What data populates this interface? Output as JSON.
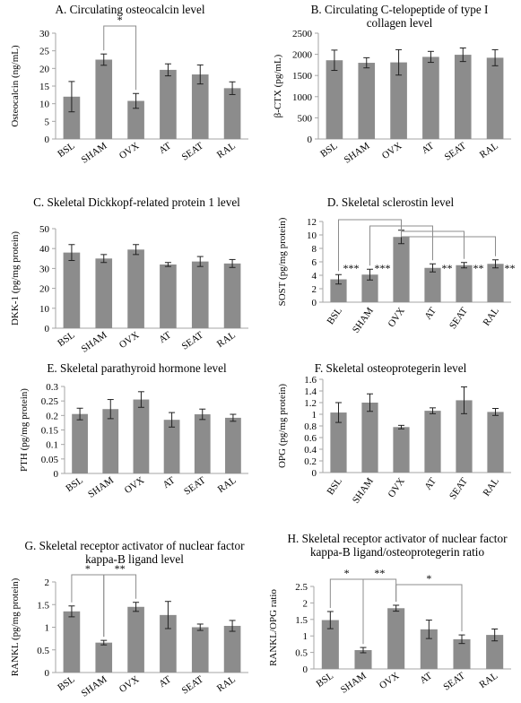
{
  "style": {
    "bar_color": "#8c8c8c",
    "axis_color": "#a6a6a6",
    "error_color": "#222222",
    "bracket_color": "#8c8c8c"
  },
  "chart_data": [
    {
      "type": "bar",
      "title": "A. Circulating osteocalcin level",
      "ylabel": "Osteocalcin (ng/mL)",
      "categories": [
        "BSL",
        "SHAM",
        "OVX",
        "AT",
        "SEAT",
        "RAL"
      ],
      "values": [
        12.0,
        22.5,
        10.8,
        19.6,
        18.3,
        14.4
      ],
      "errors": [
        4.3,
        1.6,
        2.1,
        1.7,
        2.7,
        1.8
      ],
      "ylim": [
        0,
        30
      ],
      "ytick_step": 5,
      "yticks": [
        "0",
        "5",
        "10",
        "15",
        "20",
        "25",
        "30"
      ],
      "significance": [
        {
          "from": "SHAM",
          "to": "OVX",
          "label": "*"
        }
      ]
    },
    {
      "type": "bar",
      "title": "B. Circulating C-telopeptide of type I collagen level",
      "ylabel": "β-CTX (pg/mL)",
      "categories": [
        "BSL",
        "SHAM",
        "OVX",
        "AT",
        "SEAT",
        "RAL"
      ],
      "values": [
        1860,
        1800,
        1810,
        1940,
        1990,
        1920
      ],
      "errors": [
        240,
        120,
        300,
        130,
        160,
        190
      ],
      "ylim": [
        0,
        2500
      ],
      "ytick_step": 500,
      "yticks": [
        "0",
        "500",
        "1000",
        "1500",
        "2000",
        "2500"
      ],
      "significance": []
    },
    {
      "type": "bar",
      "title": "C. Skeletal Dickkopf-related protein 1 level",
      "ylabel": "DKK-1 (pg/mg protein)",
      "categories": [
        "BSL",
        "SHAM",
        "OVX",
        "AT",
        "SEAT",
        "RAL"
      ],
      "values": [
        38.0,
        35.0,
        39.5,
        32.0,
        33.5,
        32.5
      ],
      "errors": [
        4.0,
        2.0,
        2.5,
        1.0,
        2.5,
        2.0
      ],
      "ylim": [
        0,
        50
      ],
      "ytick_step": 10,
      "yticks": [
        "0",
        "10",
        "20",
        "30",
        "40",
        "50"
      ],
      "significance": []
    },
    {
      "type": "bar",
      "title": "D. Skeletal sclerostin level",
      "ylabel": "SOST (pg/mg protein)",
      "categories": [
        "BSL",
        "SHAM",
        "OVX",
        "AT",
        "SEAT",
        "RAL"
      ],
      "values": [
        3.4,
        4.1,
        9.7,
        5.1,
        5.5,
        5.7
      ],
      "errors": [
        0.7,
        0.8,
        1.0,
        0.6,
        0.4,
        0.6
      ],
      "ylim": [
        0,
        12
      ],
      "ytick_step": 2,
      "yticks": [
        "0",
        "2",
        "4",
        "6",
        "8",
        "10",
        "12"
      ],
      "significance": [
        {
          "from": "BSL",
          "to": "OVX",
          "label": "***"
        },
        {
          "from": "SHAM",
          "to": "OVX",
          "label": "***"
        },
        {
          "from": "OVX",
          "to": "AT",
          "label": "**"
        },
        {
          "from": "OVX",
          "to": "SEAT",
          "label": "**"
        },
        {
          "from": "OVX",
          "to": "RAL",
          "label": "**"
        }
      ]
    },
    {
      "type": "bar",
      "title": "E. Skeletal parathyroid hormone level",
      "ylabel": "PTH (pg/mg protein)",
      "categories": [
        "BSL",
        "SHAM",
        "OVX",
        "AT",
        "SEAT",
        "RAL"
      ],
      "values": [
        0.205,
        0.222,
        0.255,
        0.185,
        0.204,
        0.192
      ],
      "errors": [
        0.02,
        0.033,
        0.027,
        0.025,
        0.018,
        0.012
      ],
      "ylim": [
        0,
        0.3
      ],
      "ytick_step": 0.05,
      "yticks": [
        "0",
        "0.05",
        "0.1",
        "0.15",
        "0.2",
        "0.25",
        "0.3"
      ],
      "significance": []
    },
    {
      "type": "bar",
      "title": "F. Skeletal osteoprotegerin level",
      "ylabel": "OPG (pg/mg protein)",
      "categories": [
        "BSL",
        "SHAM",
        "OVX",
        "AT",
        "SEAT",
        "RAL"
      ],
      "values": [
        1.03,
        1.2,
        0.78,
        1.06,
        1.24,
        1.04
      ],
      "errors": [
        0.17,
        0.15,
        0.03,
        0.05,
        0.23,
        0.06
      ],
      "ylim": [
        0,
        1.6
      ],
      "ytick_step": 0.2,
      "yticks": [
        "0",
        "0.2",
        "0.4",
        "0.6",
        "0.8",
        "1",
        "1.2",
        "1.4",
        "1.6"
      ],
      "significance": []
    },
    {
      "type": "bar",
      "title": "G. Skeletal receptor activator of nuclear factor kappa-B ligand level",
      "ylabel": "RANKL (pg/mg protein)",
      "categories": [
        "BSL",
        "SHAM",
        "OVX",
        "AT",
        "SEAT",
        "RAL"
      ],
      "values": [
        1.35,
        0.66,
        1.45,
        1.27,
        1.0,
        1.03
      ],
      "errors": [
        0.12,
        0.05,
        0.1,
        0.3,
        0.07,
        0.12
      ],
      "ylim": [
        0,
        2
      ],
      "ytick_step": 0.5,
      "yticks": [
        "0",
        "0.5",
        "1",
        "1.5",
        "2"
      ],
      "significance": [
        {
          "from": "BSL",
          "to": "SHAM",
          "label": "*"
        },
        {
          "from": "SHAM",
          "to": "OVX",
          "label": "**"
        }
      ]
    },
    {
      "type": "bar",
      "title": "H. Skeletal receptor activator of nuclear factor kappa-B ligand/osteoprotegerin ratio",
      "ylabel": "RANKL/OPG ratio",
      "categories": [
        "BSL",
        "SHAM",
        "OVX",
        "AT",
        "SEAT",
        "RAL"
      ],
      "values": [
        1.48,
        0.57,
        1.84,
        1.2,
        0.9,
        1.03
      ],
      "errors": [
        0.26,
        0.08,
        0.09,
        0.28,
        0.13,
        0.18
      ],
      "ylim": [
        0,
        2.5
      ],
      "ytick_step": 0.5,
      "yticks": [
        "0",
        "0.5",
        "1",
        "1.5",
        "2",
        "2.5"
      ],
      "significance": [
        {
          "from": "BSL",
          "to": "SHAM",
          "label": "*"
        },
        {
          "from": "SHAM",
          "to": "OVX",
          "label": "**"
        },
        {
          "from": "OVX",
          "to": "SEAT",
          "label": "*"
        }
      ]
    }
  ]
}
